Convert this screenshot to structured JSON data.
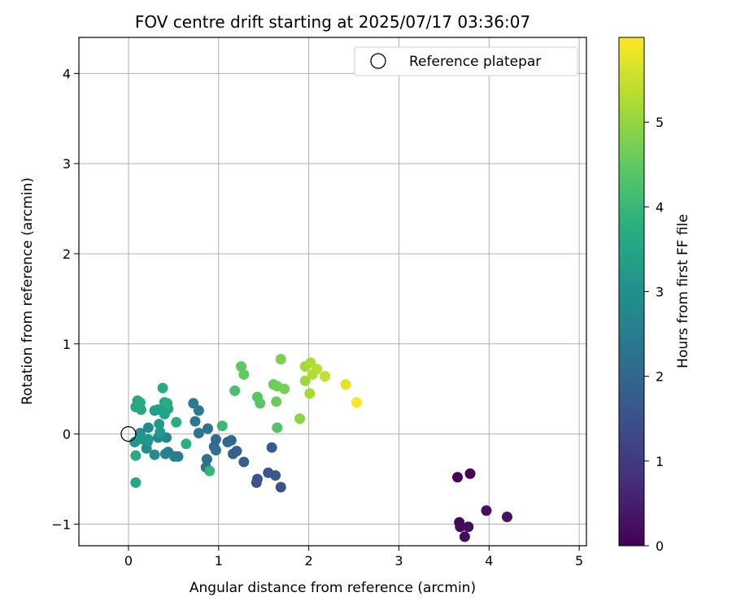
{
  "chart_data": {
    "type": "scatter",
    "title": "FOV centre drift starting at 2025/07/17 03:36:07",
    "xlabel": "Angular distance from reference (arcmin)",
    "ylabel": "Rotation from reference (arcmin)",
    "xlim": [
      -0.55,
      5.08
    ],
    "ylim": [
      -1.24,
      4.4
    ],
    "xticks": [
      "0",
      "1",
      "2",
      "3",
      "4",
      "5"
    ],
    "yticks": [
      "−1",
      "0",
      "1",
      "2",
      "3",
      "4"
    ],
    "grid": true,
    "legend": {
      "position": "top-right",
      "entries": [
        "Reference platepar"
      ]
    },
    "reference_point": {
      "x": 0,
      "y": 0
    },
    "colorbar": {
      "label": "Hours from first FF file",
      "colormap": "viridis",
      "range": [
        0,
        6.0
      ],
      "ticks": [
        "0",
        "1",
        "2",
        "3",
        "4",
        "5"
      ]
    },
    "points": [
      {
        "x": 3.65,
        "y": -0.48,
        "c": 0.05
      },
      {
        "x": 3.79,
        "y": -0.44,
        "c": 0.08
      },
      {
        "x": 3.67,
        "y": -0.98,
        "c": 0.12
      },
      {
        "x": 3.68,
        "y": -1.03,
        "c": 0.15
      },
      {
        "x": 3.77,
        "y": -1.03,
        "c": 0.18
      },
      {
        "x": 3.73,
        "y": -1.14,
        "c": 0.2
      },
      {
        "x": 3.97,
        "y": -0.85,
        "c": 0.25
      },
      {
        "x": 4.2,
        "y": -0.92,
        "c": 0.28
      },
      {
        "x": 1.69,
        "y": -0.59,
        "c": 1.5
      },
      {
        "x": 1.42,
        "y": -0.54,
        "c": 1.55
      },
      {
        "x": 1.43,
        "y": -0.5,
        "c": 1.6
      },
      {
        "x": 1.55,
        "y": -0.43,
        "c": 1.65
      },
      {
        "x": 1.63,
        "y": -0.46,
        "c": 1.7
      },
      {
        "x": 1.59,
        "y": -0.15,
        "c": 1.75
      },
      {
        "x": 1.28,
        "y": -0.31,
        "c": 1.8
      },
      {
        "x": 1.2,
        "y": -0.19,
        "c": 1.85
      },
      {
        "x": 1.16,
        "y": -0.22,
        "c": 1.9
      },
      {
        "x": 1.14,
        "y": -0.07,
        "c": 1.95
      },
      {
        "x": 1.1,
        "y": -0.09,
        "c": 2.0
      },
      {
        "x": 0.97,
        "y": -0.06,
        "c": 2.05
      },
      {
        "x": 0.95,
        "y": -0.14,
        "c": 2.1
      },
      {
        "x": 0.97,
        "y": -0.18,
        "c": 2.15
      },
      {
        "x": 0.86,
        "y": -0.37,
        "c": 2.2
      },
      {
        "x": 0.87,
        "y": -0.28,
        "c": 2.25
      },
      {
        "x": 0.88,
        "y": 0.06,
        "c": 2.3
      },
      {
        "x": 0.78,
        "y": 0.01,
        "c": 2.35
      },
      {
        "x": 0.74,
        "y": 0.14,
        "c": 2.4
      },
      {
        "x": 0.78,
        "y": 0.26,
        "c": 2.45
      },
      {
        "x": 0.72,
        "y": 0.34,
        "c": 2.5
      },
      {
        "x": 0.55,
        "y": -0.25,
        "c": 2.55
      },
      {
        "x": 0.51,
        "y": -0.25,
        "c": 2.6
      },
      {
        "x": 0.44,
        "y": -0.2,
        "c": 2.65
      },
      {
        "x": 0.41,
        "y": -0.22,
        "c": 2.7
      },
      {
        "x": 0.42,
        "y": -0.04,
        "c": 2.75
      },
      {
        "x": 0.33,
        "y": -0.04,
        "c": 2.8
      },
      {
        "x": 0.22,
        "y": 0.07,
        "c": 2.85
      },
      {
        "x": 0.29,
        "y": -0.23,
        "c": 2.9
      },
      {
        "x": 0.2,
        "y": -0.16,
        "c": 2.95
      },
      {
        "x": 0.21,
        "y": -0.09,
        "c": 3.0
      },
      {
        "x": 0.13,
        "y": 0.01,
        "c": 3.05
      },
      {
        "x": 0.07,
        "y": -0.09,
        "c": 3.1
      },
      {
        "x": 0.16,
        "y": -0.06,
        "c": 3.15
      },
      {
        "x": 0.22,
        "y": -0.06,
        "c": 3.2
      },
      {
        "x": 0.35,
        "y": 0.02,
        "c": 3.25
      },
      {
        "x": 0.34,
        "y": 0.11,
        "c": 3.3
      },
      {
        "x": 0.29,
        "y": 0.26,
        "c": 3.35
      },
      {
        "x": 0.33,
        "y": 0.27,
        "c": 3.4
      },
      {
        "x": 0.4,
        "y": 0.22,
        "c": 3.45
      },
      {
        "x": 0.44,
        "y": 0.28,
        "c": 3.5
      },
      {
        "x": 0.4,
        "y": 0.35,
        "c": 3.55
      },
      {
        "x": 0.08,
        "y": 0.3,
        "c": 3.55
      },
      {
        "x": 0.14,
        "y": 0.27,
        "c": 3.6
      },
      {
        "x": 0.1,
        "y": 0.37,
        "c": 3.6
      },
      {
        "x": 0.13,
        "y": 0.35,
        "c": 3.65
      },
      {
        "x": 0.38,
        "y": 0.51,
        "c": 3.65
      },
      {
        "x": 0.43,
        "y": 0.34,
        "c": 3.7
      },
      {
        "x": 0.08,
        "y": -0.24,
        "c": 3.6
      },
      {
        "x": 0.08,
        "y": -0.54,
        "c": 3.55
      },
      {
        "x": 0.53,
        "y": 0.13,
        "c": 3.7
      },
      {
        "x": 0.64,
        "y": -0.11,
        "c": 3.75
      },
      {
        "x": 0.9,
        "y": -0.41,
        "c": 3.95
      },
      {
        "x": 1.04,
        "y": 0.09,
        "c": 4.05
      },
      {
        "x": 1.18,
        "y": 0.48,
        "c": 4.25
      },
      {
        "x": 1.65,
        "y": 0.07,
        "c": 4.35
      },
      {
        "x": 1.43,
        "y": 0.41,
        "c": 4.4
      },
      {
        "x": 1.46,
        "y": 0.34,
        "c": 4.45
      },
      {
        "x": 1.25,
        "y": 0.75,
        "c": 4.5
      },
      {
        "x": 1.28,
        "y": 0.66,
        "c": 4.55
      },
      {
        "x": 1.61,
        "y": 0.55,
        "c": 4.6
      },
      {
        "x": 1.64,
        "y": 0.36,
        "c": 4.65
      },
      {
        "x": 1.65,
        "y": 0.53,
        "c": 4.7
      },
      {
        "x": 1.73,
        "y": 0.5,
        "c": 4.75
      },
      {
        "x": 1.69,
        "y": 0.83,
        "c": 4.8
      },
      {
        "x": 1.9,
        "y": 0.17,
        "c": 4.95
      },
      {
        "x": 1.96,
        "y": 0.59,
        "c": 5.1
      },
      {
        "x": 1.96,
        "y": 0.75,
        "c": 5.15
      },
      {
        "x": 2.01,
        "y": 0.45,
        "c": 5.2
      },
      {
        "x": 2.02,
        "y": 0.79,
        "c": 5.25
      },
      {
        "x": 2.04,
        "y": 0.66,
        "c": 5.3
      },
      {
        "x": 2.09,
        "y": 0.72,
        "c": 5.35
      },
      {
        "x": 2.18,
        "y": 0.64,
        "c": 5.45
      },
      {
        "x": 2.41,
        "y": 0.55,
        "c": 5.75
      },
      {
        "x": 2.53,
        "y": 0.35,
        "c": 5.95
      }
    ]
  }
}
